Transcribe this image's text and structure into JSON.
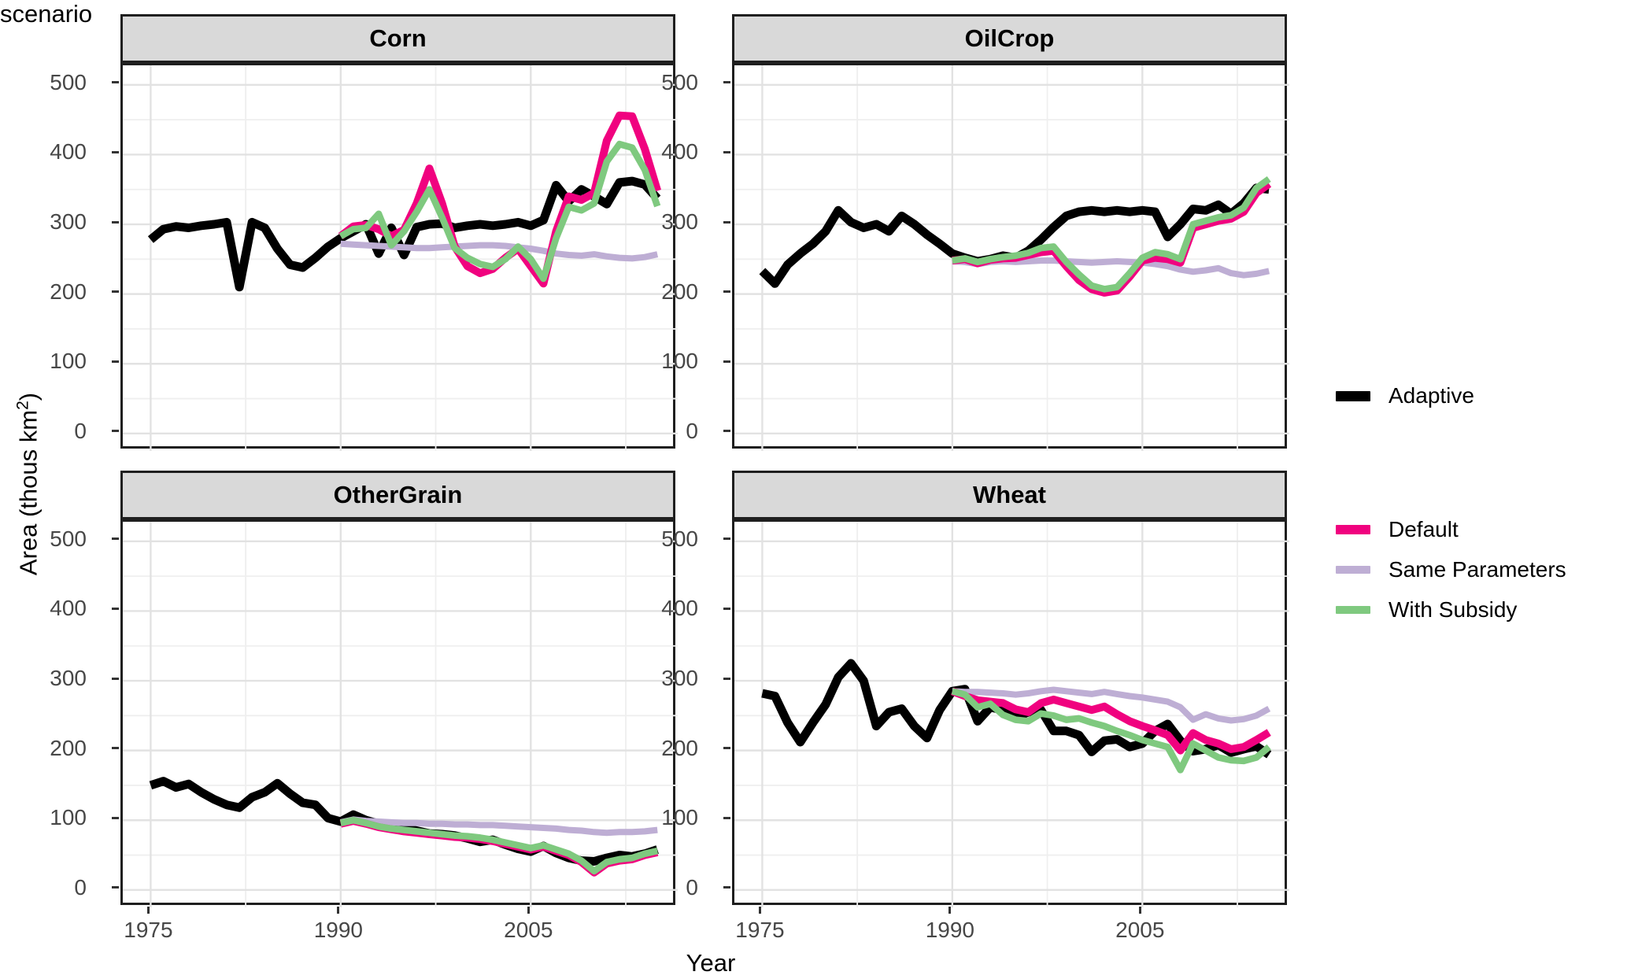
{
  "figure": {
    "background": "#FFFFFF"
  },
  "style": {
    "strip_background": "#D9D9D9",
    "panel_border": "#1F1F1F",
    "grid_major_color": "#E2E2E2",
    "grid_minor_color": "#EFEFEF",
    "tick_mark_color": "#333333",
    "tick_label_color": "#474747"
  },
  "axes": {
    "x_title": "Year",
    "y_title_prefix": "Area (thous km",
    "y_title_superscript": "2",
    "y_title_suffix": ")",
    "x_tick_labels": [
      "1975",
      "1990",
      "2005"
    ],
    "x_tick_values": [
      1975,
      1990,
      2005
    ],
    "x_minor_values": [
      1982.5,
      1997.5,
      2012.5
    ],
    "y_tick_labels": [
      "0",
      "100",
      "200",
      "300",
      "400",
      "500"
    ],
    "y_tick_values": [
      0,
      100,
      200,
      300,
      400,
      500
    ],
    "y_minor_values": [
      50,
      150,
      250,
      350,
      450
    ],
    "x_domain": [
      1972.8,
      2016.6
    ],
    "y_domain": [
      -25,
      528
    ],
    "grid": "major+minor"
  },
  "legend": {
    "title": "scenario",
    "position": "right",
    "items": [
      {
        "label": "Adaptive",
        "color": "#000000",
        "line_width": 11
      },
      {
        "label": "Default",
        "color": "#F0027F",
        "line_width": 10
      },
      {
        "label": "Same Parameters",
        "color": "#BEAED4",
        "line_width": 8
      },
      {
        "label": "With Subsidy",
        "color": "#7FC97F",
        "line_width": 8.5
      }
    ]
  },
  "chart_data": [
    {
      "id": "corn",
      "type": "line",
      "title": "Corn",
      "series": [
        {
          "scenario": "Adaptive",
          "start_year": 1975,
          "values": [
            278,
            293,
            297,
            295,
            298,
            300,
            303,
            210,
            303,
            295,
            265,
            242,
            238,
            252,
            268,
            280,
            290,
            300,
            258,
            295,
            256,
            296,
            300,
            301,
            295,
            298,
            300,
            298,
            300,
            303,
            298,
            306,
            356,
            333,
            350,
            340,
            329,
            360,
            362,
            357,
            337
          ]
        },
        {
          "scenario": "Same Parameters",
          "start_year": 1990,
          "values": [
            272,
            271,
            270,
            269,
            268,
            267,
            266,
            266,
            267,
            268,
            269,
            270,
            270,
            269,
            267,
            265,
            262,
            258,
            256,
            255,
            257,
            254,
            252,
            251,
            253,
            257
          ]
        },
        {
          "scenario": "Default",
          "start_year": 1990,
          "values": [
            283,
            297,
            299,
            293,
            283,
            292,
            330,
            380,
            330,
            268,
            240,
            230,
            236,
            252,
            265,
            240,
            215,
            290,
            340,
            335,
            345,
            420,
            456,
            455,
            408,
            348
          ]
        },
        {
          "scenario": "With Subsidy",
          "start_year": 1990,
          "values": [
            283,
            293,
            295,
            315,
            270,
            290,
            318,
            350,
            310,
            266,
            252,
            243,
            239,
            250,
            268,
            250,
            222,
            280,
            325,
            320,
            330,
            390,
            415,
            410,
            378,
            326
          ]
        }
      ]
    },
    {
      "id": "oilcrop",
      "type": "line",
      "title": "OilCrop",
      "series": [
        {
          "scenario": "Adaptive",
          "start_year": 1975,
          "values": [
            233,
            215,
            242,
            258,
            272,
            290,
            320,
            303,
            295,
            300,
            290,
            312,
            300,
            285,
            272,
            258,
            252,
            247,
            250,
            255,
            252,
            262,
            278,
            296,
            312,
            318,
            320,
            318,
            320,
            318,
            320,
            318,
            282,
            300,
            322,
            320,
            328,
            315,
            330,
            352,
            350
          ]
        },
        {
          "scenario": "Same Parameters",
          "start_year": 1990,
          "values": [
            247,
            246,
            243,
            246,
            247,
            246,
            247,
            248,
            248,
            247,
            246,
            245,
            246,
            247,
            246,
            245,
            243,
            240,
            235,
            232,
            234,
            237,
            230,
            227,
            229,
            233
          ]
        },
        {
          "scenario": "Default",
          "start_year": 1990,
          "values": [
            248,
            250,
            244,
            249,
            251,
            252,
            256,
            260,
            262,
            240,
            220,
            207,
            202,
            205,
            225,
            248,
            252,
            250,
            245,
            295,
            300,
            305,
            308,
            318,
            345,
            358
          ]
        },
        {
          "scenario": "With Subsidy",
          "start_year": 1990,
          "values": [
            248,
            251,
            246,
            250,
            253,
            255,
            259,
            266,
            268,
            246,
            228,
            212,
            207,
            210,
            230,
            252,
            260,
            257,
            250,
            300,
            305,
            310,
            313,
            324,
            352,
            365
          ]
        }
      ]
    },
    {
      "id": "othergrain",
      "type": "line",
      "title": "OtherGrain",
      "series": [
        {
          "scenario": "Adaptive",
          "start_year": 1975,
          "values": [
            150,
            156,
            147,
            152,
            140,
            130,
            122,
            118,
            133,
            140,
            153,
            138,
            125,
            122,
            103,
            98,
            108,
            100,
            95,
            88,
            90,
            85,
            81,
            80,
            78,
            74,
            69,
            72,
            65,
            59,
            55,
            63,
            53,
            46,
            42,
            41,
            46,
            50,
            48,
            52,
            58
          ]
        },
        {
          "scenario": "Same Parameters",
          "start_year": 1990,
          "values": [
            97,
            101,
            99,
            98,
            97,
            96,
            96,
            95,
            95,
            94,
            94,
            93,
            93,
            92,
            91,
            90,
            89,
            88,
            86,
            85,
            83,
            82,
            83,
            83,
            84,
            86
          ]
        },
        {
          "scenario": "Default",
          "start_year": 1990,
          "values": [
            95,
            99,
            95,
            90,
            87,
            84,
            82,
            80,
            78,
            76,
            75,
            73,
            70,
            66,
            62,
            58,
            62,
            56,
            50,
            40,
            25,
            38,
            42,
            44,
            50,
            54
          ]
        },
        {
          "scenario": "With Subsidy",
          "start_year": 1990,
          "values": [
            96,
            100,
            96,
            91,
            88,
            86,
            84,
            82,
            80,
            78,
            77,
            75,
            72,
            68,
            64,
            60,
            64,
            58,
            52,
            42,
            27,
            40,
            44,
            46,
            52,
            56
          ]
        }
      ]
    },
    {
      "id": "wheat",
      "type": "line",
      "title": "Wheat",
      "series": [
        {
          "scenario": "Adaptive",
          "start_year": 1975,
          "values": [
            282,
            278,
            240,
            212,
            240,
            266,
            305,
            325,
            300,
            235,
            255,
            260,
            235,
            218,
            258,
            285,
            288,
            242,
            262,
            258,
            247,
            255,
            258,
            228,
            228,
            222,
            198,
            214,
            216,
            205,
            210,
            228,
            238,
            214,
            199,
            202,
            208,
            197,
            202,
            206,
            194
          ]
        },
        {
          "scenario": "Same Parameters",
          "start_year": 1990,
          "values": [
            285,
            284,
            284,
            283,
            282,
            280,
            282,
            285,
            287,
            285,
            283,
            281,
            284,
            281,
            278,
            276,
            273,
            270,
            262,
            244,
            252,
            246,
            243,
            245,
            250,
            260
          ]
        },
        {
          "scenario": "Default",
          "start_year": 1990,
          "values": [
            285,
            278,
            272,
            270,
            268,
            259,
            255,
            268,
            273,
            268,
            263,
            258,
            263,
            252,
            242,
            235,
            229,
            222,
            200,
            225,
            215,
            210,
            202,
            205,
            215,
            226
          ]
        },
        {
          "scenario": "With Subsidy",
          "start_year": 1990,
          "values": [
            285,
            280,
            262,
            267,
            251,
            244,
            242,
            253,
            250,
            244,
            246,
            240,
            235,
            228,
            222,
            215,
            210,
            205,
            172,
            210,
            200,
            190,
            186,
            185,
            190,
            205
          ]
        }
      ]
    }
  ]
}
